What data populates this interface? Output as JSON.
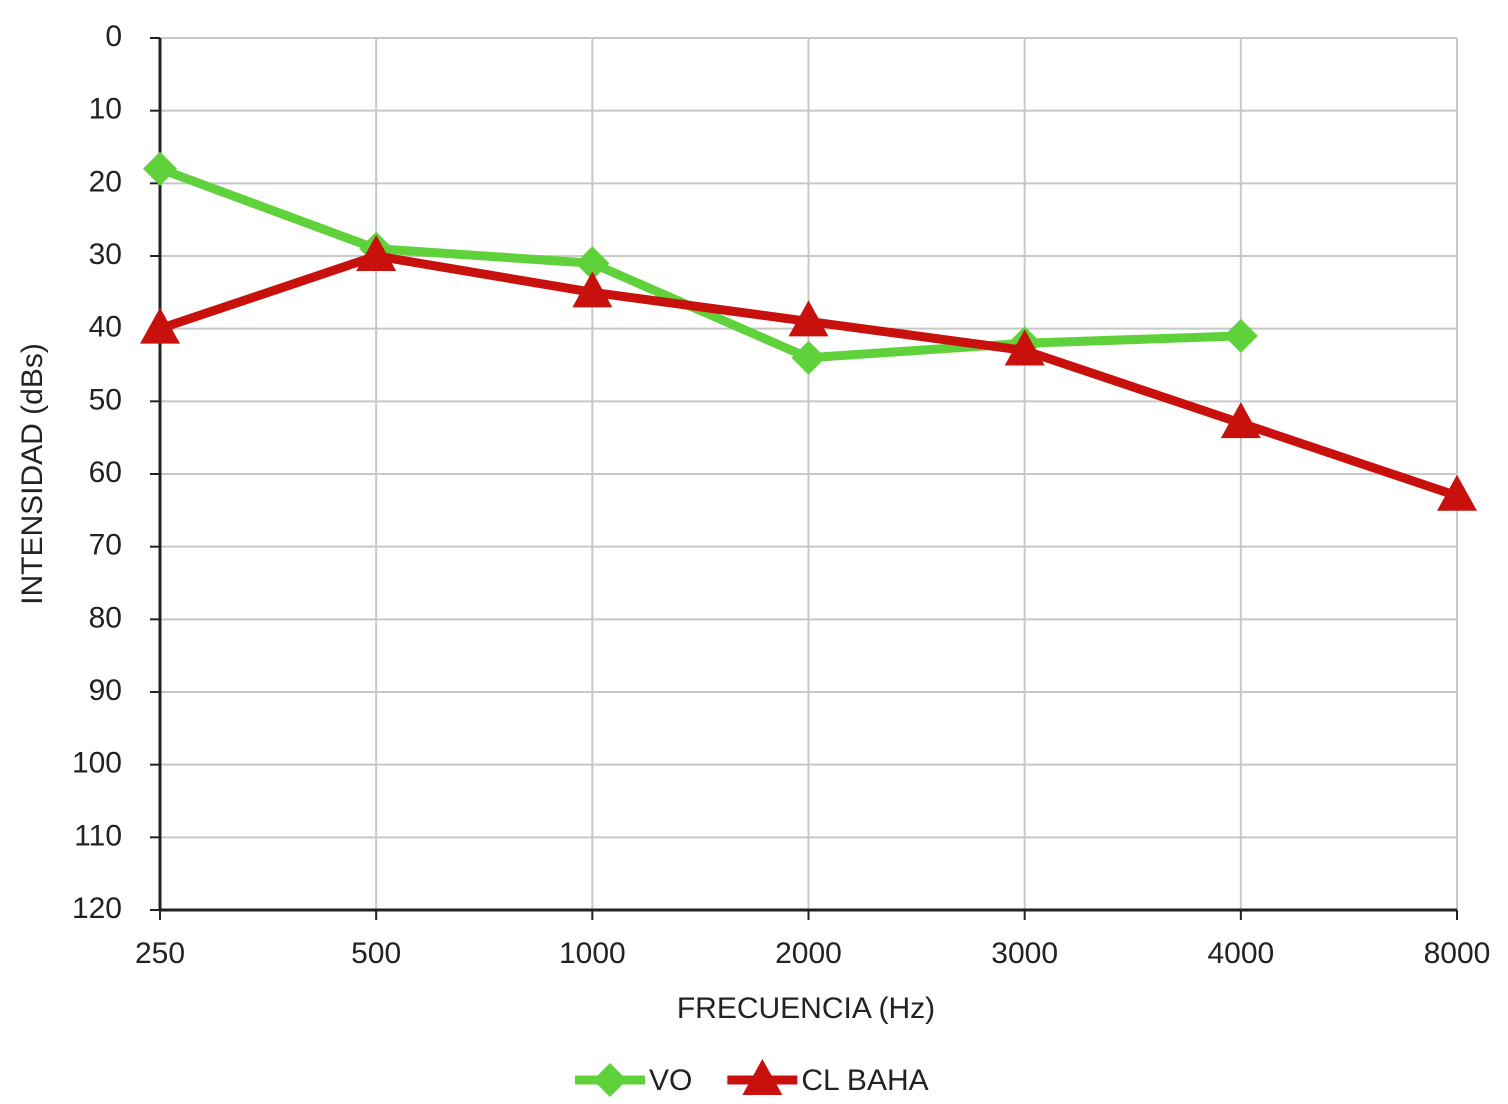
{
  "chart_data": {
    "type": "line",
    "x_label": "FRECUENCIA (Hz)",
    "y_label": "INTENSIDAD (dBs)",
    "categories": [
      "250",
      "500",
      "1000",
      "2000",
      "3000",
      "4000",
      "8000"
    ],
    "series": [
      {
        "name": "VO",
        "color": "#5fd13a",
        "marker": "diamond",
        "values": [
          18,
          29,
          31,
          44,
          42,
          41,
          null
        ]
      },
      {
        "name": "CL BAHA",
        "color": "#c8100c",
        "marker": "triangle",
        "values": [
          40,
          30,
          35,
          39,
          43,
          53,
          63
        ]
      }
    ],
    "ylim": [
      0,
      120
    ],
    "y_reversed": true,
    "yticks": [
      0,
      10,
      20,
      30,
      40,
      50,
      60,
      70,
      80,
      90,
      100,
      110,
      120
    ],
    "grid": true,
    "legend": "bottom"
  }
}
